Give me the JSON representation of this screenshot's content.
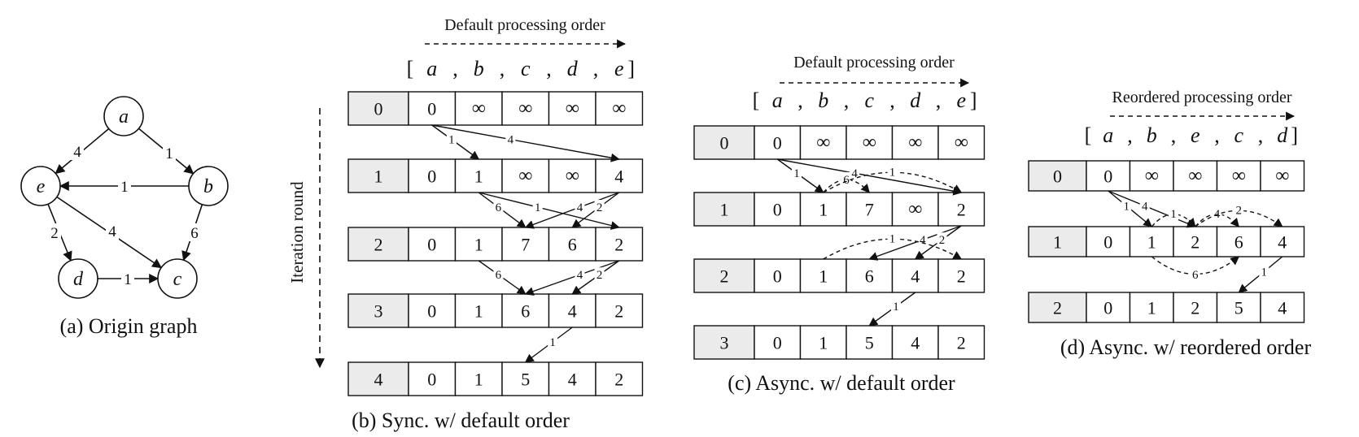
{
  "origin_graph": {
    "caption": "(a) Origin graph",
    "nodes": [
      "a",
      "b",
      "c",
      "d",
      "e"
    ],
    "edges": [
      {
        "from": "a",
        "to": "e",
        "weight": "4"
      },
      {
        "from": "a",
        "to": "b",
        "weight": "1"
      },
      {
        "from": "b",
        "to": "e",
        "weight": "1"
      },
      {
        "from": "b",
        "to": "c",
        "weight": "6"
      },
      {
        "from": "e",
        "to": "d",
        "weight": "2"
      },
      {
        "from": "e",
        "to": "c",
        "weight": "4"
      },
      {
        "from": "d",
        "to": "c",
        "weight": "1"
      }
    ]
  },
  "iteration_label": "Iteration round",
  "panels": [
    {
      "id": "b",
      "caption": "(b) Sync. w/ default order",
      "order_title": "Default processing order",
      "order": [
        "a",
        "b",
        "c",
        "d",
        "e"
      ],
      "rows": [
        {
          "round": "0",
          "values": [
            "0",
            "∞",
            "∞",
            "∞",
            "∞"
          ]
        },
        {
          "round": "1",
          "values": [
            "0",
            "1",
            "∞",
            "∞",
            "4"
          ]
        },
        {
          "round": "2",
          "values": [
            "0",
            "1",
            "7",
            "6",
            "2"
          ]
        },
        {
          "round": "3",
          "values": [
            "0",
            "1",
            "6",
            "4",
            "2"
          ]
        },
        {
          "round": "4",
          "values": [
            "0",
            "1",
            "5",
            "4",
            "2"
          ]
        }
      ],
      "arrows": [
        {
          "from_row": 0,
          "from_col": 0,
          "to_row": 1,
          "to_col": 1,
          "weight": "1",
          "dashed": false
        },
        {
          "from_row": 0,
          "from_col": 0,
          "to_row": 1,
          "to_col": 4,
          "weight": "4",
          "dashed": false
        },
        {
          "from_row": 1,
          "from_col": 1,
          "to_row": 2,
          "to_col": 2,
          "weight": "6",
          "dashed": false
        },
        {
          "from_row": 1,
          "from_col": 1,
          "to_row": 2,
          "to_col": 4,
          "weight": "1",
          "dashed": false
        },
        {
          "from_row": 1,
          "from_col": 4,
          "to_row": 2,
          "to_col": 2,
          "weight": "4",
          "dashed": false
        },
        {
          "from_row": 1,
          "from_col": 4,
          "to_row": 2,
          "to_col": 3,
          "weight": "2",
          "dashed": false
        },
        {
          "from_row": 2,
          "from_col": 1,
          "to_row": 3,
          "to_col": 2,
          "weight": "6",
          "dashed": false
        },
        {
          "from_row": 2,
          "from_col": 4,
          "to_row": 3,
          "to_col": 2,
          "weight": "4",
          "dashed": false
        },
        {
          "from_row": 2,
          "from_col": 4,
          "to_row": 3,
          "to_col": 3,
          "weight": "2",
          "dashed": false
        },
        {
          "from_row": 3,
          "from_col": 3,
          "to_row": 4,
          "to_col": 2,
          "weight": "1",
          "dashed": false
        }
      ]
    },
    {
      "id": "c",
      "caption": "(c) Async. w/ default order",
      "order_title": "Default processing order",
      "order": [
        "a",
        "b",
        "c",
        "d",
        "e"
      ],
      "rows": [
        {
          "round": "0",
          "values": [
            "0",
            "∞",
            "∞",
            "∞",
            "∞"
          ]
        },
        {
          "round": "1",
          "values": [
            "0",
            "1",
            "7",
            "∞",
            "2"
          ]
        },
        {
          "round": "2",
          "values": [
            "0",
            "1",
            "6",
            "4",
            "2"
          ]
        },
        {
          "round": "3",
          "values": [
            "0",
            "1",
            "5",
            "4",
            "2"
          ]
        }
      ],
      "arrows": [
        {
          "from_row": 0,
          "from_col": 0,
          "to_row": 1,
          "to_col": 1,
          "weight": "1",
          "dashed": false
        },
        {
          "from_row": 0,
          "from_col": 0,
          "to_row": 1,
          "to_col": 4,
          "weight": "4",
          "dashed": false
        },
        {
          "from_row": 1,
          "from_col": 1,
          "to_row": 1,
          "to_col": 2,
          "weight": "6",
          "dashed": true,
          "top": true
        },
        {
          "from_row": 1,
          "from_col": 1,
          "to_row": 1,
          "to_col": 4,
          "weight": "1",
          "dashed": true,
          "top": true
        },
        {
          "from_row": 1,
          "from_col": 4,
          "to_row": 2,
          "to_col": 2,
          "weight": "4",
          "dashed": false
        },
        {
          "from_row": 1,
          "from_col": 4,
          "to_row": 2,
          "to_col": 3,
          "weight": "2",
          "dashed": false
        },
        {
          "from_row": 2,
          "from_col": 1,
          "to_row": 2,
          "to_col": 4,
          "weight": "1",
          "dashed": true,
          "top": true
        },
        {
          "from_row": 2,
          "from_col": 3,
          "to_row": 3,
          "to_col": 2,
          "weight": "1",
          "dashed": false
        }
      ]
    },
    {
      "id": "d",
      "caption": "(d) Async. w/ reordered order",
      "order_title": "Reordered processing order",
      "order": [
        "a",
        "b",
        "e",
        "c",
        "d"
      ],
      "rows": [
        {
          "round": "0",
          "values": [
            "0",
            "∞",
            "∞",
            "∞",
            "∞"
          ]
        },
        {
          "round": "1",
          "values": [
            "0",
            "1",
            "2",
            "6",
            "4"
          ]
        },
        {
          "round": "2",
          "values": [
            "0",
            "1",
            "2",
            "5",
            "4"
          ]
        }
      ],
      "arrows": [
        {
          "from_row": 0,
          "from_col": 0,
          "to_row": 1,
          "to_col": 1,
          "weight": "1",
          "dashed": false
        },
        {
          "from_row": 0,
          "from_col": 0,
          "to_row": 1,
          "to_col": 2,
          "weight": "4",
          "dashed": false
        },
        {
          "from_row": 1,
          "from_col": 1,
          "to_row": 1,
          "to_col": 2,
          "weight": "1",
          "dashed": true,
          "top": true
        },
        {
          "from_row": 1,
          "from_col": 2,
          "to_row": 1,
          "to_col": 3,
          "weight": "4",
          "dashed": true,
          "top": true
        },
        {
          "from_row": 1,
          "from_col": 2,
          "to_row": 1,
          "to_col": 4,
          "weight": "2",
          "dashed": true,
          "top": true
        },
        {
          "from_row": 1,
          "from_col": 1,
          "to_row": 1,
          "to_col": 3,
          "weight": "6",
          "dashed": true,
          "top": false
        },
        {
          "from_row": 1,
          "from_col": 4,
          "to_row": 2,
          "to_col": 3,
          "weight": "1",
          "dashed": false
        }
      ]
    }
  ]
}
